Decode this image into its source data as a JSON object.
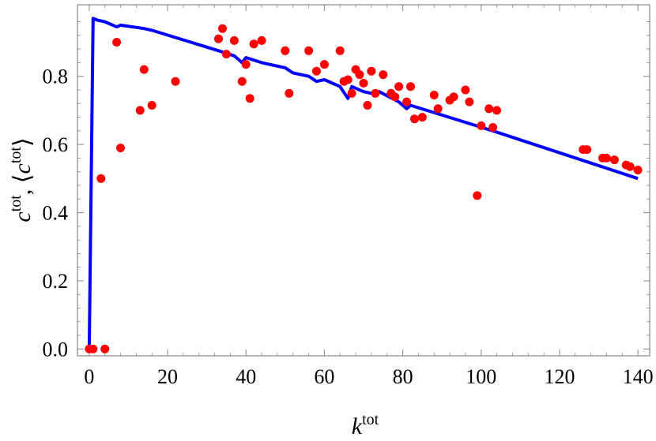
{
  "chart_data": {
    "type": "scatter",
    "xlabel": {
      "base": "k",
      "sup": "tot"
    },
    "ylabel": {
      "part1_base": "c",
      "part1_sup": "tot",
      "sep": ", ",
      "open": "⟨",
      "part2_base": "c",
      "part2_sup": "tot",
      "close": "⟩"
    },
    "xlim": [
      -3,
      143
    ],
    "ylim": [
      -0.02,
      1.01
    ],
    "x_ticks": [
      0,
      20,
      40,
      60,
      80,
      100,
      120,
      140
    ],
    "x_tick_labels": [
      "0",
      "20",
      "40",
      "60",
      "80",
      "100",
      "120",
      "140"
    ],
    "y_ticks": [
      0.0,
      0.2,
      0.4,
      0.6,
      0.8
    ],
    "y_tick_labels": [
      "0.0",
      "0.2",
      "0.4",
      "0.6",
      "0.8"
    ],
    "grid": false,
    "colors": {
      "scatter": "#ff0000",
      "line": "#0000ff",
      "frame": "#888888"
    },
    "series": [
      {
        "kind": "scatter",
        "points": [
          [
            0,
            0.0
          ],
          [
            1,
            0.0
          ],
          [
            4,
            0.0
          ],
          [
            3,
            0.5
          ],
          [
            7,
            0.9
          ],
          [
            8,
            0.59
          ],
          [
            13,
            0.7
          ],
          [
            14,
            0.82
          ],
          [
            16,
            0.715
          ],
          [
            22,
            0.785
          ],
          [
            33,
            0.91
          ],
          [
            34,
            0.94
          ],
          [
            35,
            0.865
          ],
          [
            37,
            0.905
          ],
          [
            39,
            0.785
          ],
          [
            40,
            0.835
          ],
          [
            41,
            0.735
          ],
          [
            42,
            0.895
          ],
          [
            44,
            0.905
          ],
          [
            50,
            0.875
          ],
          [
            51,
            0.75
          ],
          [
            56,
            0.875
          ],
          [
            58,
            0.815
          ],
          [
            60,
            0.835
          ],
          [
            64,
            0.875
          ],
          [
            65,
            0.785
          ],
          [
            66,
            0.79
          ],
          [
            67,
            0.75
          ],
          [
            68,
            0.82
          ],
          [
            69,
            0.805
          ],
          [
            70,
            0.78
          ],
          [
            71,
            0.715
          ],
          [
            72,
            0.815
          ],
          [
            73,
            0.75
          ],
          [
            75,
            0.805
          ],
          [
            77,
            0.75
          ],
          [
            78,
            0.74
          ],
          [
            79,
            0.77
          ],
          [
            81,
            0.725
          ],
          [
            82,
            0.77
          ],
          [
            83,
            0.675
          ],
          [
            85,
            0.68
          ],
          [
            88,
            0.745
          ],
          [
            89,
            0.705
          ],
          [
            92,
            0.73
          ],
          [
            93,
            0.74
          ],
          [
            96,
            0.76
          ],
          [
            97,
            0.725
          ],
          [
            99,
            0.45
          ],
          [
            100,
            0.655
          ],
          [
            102,
            0.705
          ],
          [
            103,
            0.65
          ],
          [
            104,
            0.7
          ],
          [
            126,
            0.585
          ],
          [
            127,
            0.585
          ],
          [
            131,
            0.56
          ],
          [
            132,
            0.56
          ],
          [
            134,
            0.555
          ],
          [
            137,
            0.54
          ],
          [
            138,
            0.535
          ],
          [
            140,
            0.525
          ]
        ]
      },
      {
        "kind": "line",
        "points": [
          [
            0,
            0.0
          ],
          [
            1,
            0.97
          ],
          [
            2,
            0.965
          ],
          [
            4,
            0.96
          ],
          [
            7,
            0.945
          ],
          [
            8,
            0.95
          ],
          [
            14,
            0.94
          ],
          [
            16,
            0.935
          ],
          [
            33,
            0.875
          ],
          [
            37,
            0.86
          ],
          [
            39,
            0.84
          ],
          [
            40,
            0.855
          ],
          [
            44,
            0.84
          ],
          [
            50,
            0.825
          ],
          [
            52,
            0.81
          ],
          [
            56,
            0.8
          ],
          [
            58,
            0.785
          ],
          [
            60,
            0.79
          ],
          [
            64,
            0.77
          ],
          [
            66,
            0.735
          ],
          [
            67,
            0.77
          ],
          [
            70,
            0.755
          ],
          [
            72,
            0.75
          ],
          [
            74,
            0.755
          ],
          [
            79,
            0.725
          ],
          [
            81,
            0.705
          ],
          [
            82,
            0.715
          ],
          [
            103,
            0.64
          ],
          [
            140,
            0.5
          ]
        ]
      }
    ]
  }
}
